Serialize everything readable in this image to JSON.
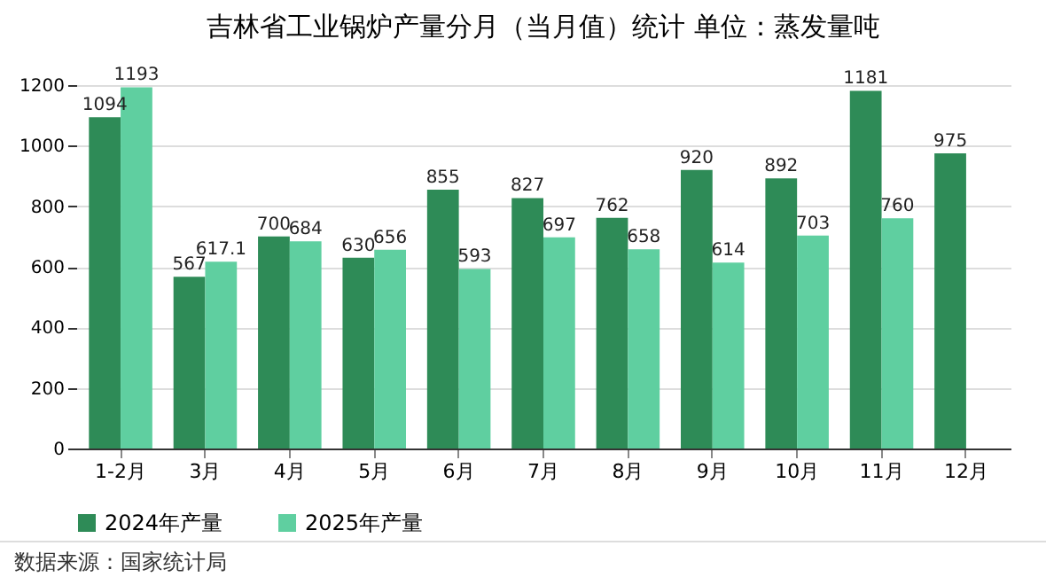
{
  "chart_data": {
    "type": "bar",
    "title": "吉林省工业锅炉产量分月（当月值）统计  单位：蒸发量吨",
    "categories": [
      "1-2月",
      "3月",
      "4月",
      "5月",
      "6月",
      "7月",
      "8月",
      "9月",
      "10月",
      "11月",
      "12月"
    ],
    "series": [
      {
        "name": "2024年产量",
        "color": "#2e8b57",
        "values": [
          1094,
          567,
          700,
          630,
          855,
          827,
          762,
          920,
          892,
          1181,
          975
        ]
      },
      {
        "name": "2025年产量",
        "color": "#5fcfa0",
        "values": [
          1193,
          617.1,
          684,
          656,
          593,
          697,
          658,
          614,
          703,
          760,
          null
        ]
      }
    ],
    "ylim": [
      0,
      1200
    ],
    "yticks": [
      0,
      200,
      400,
      600,
      800,
      1000,
      1200
    ],
    "grid": "y",
    "legend": "bottom",
    "data_labels": true,
    "annotations": [
      "数据来源：国家统计局"
    ]
  }
}
